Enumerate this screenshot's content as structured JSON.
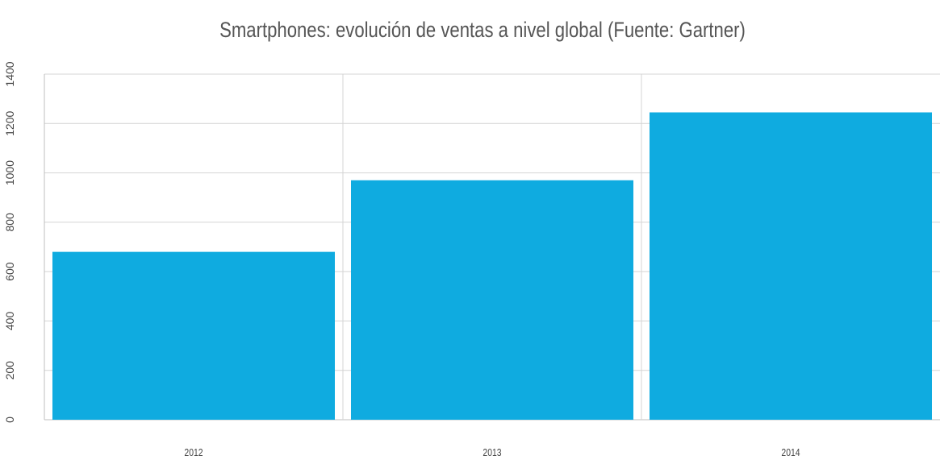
{
  "chart_data": {
    "type": "bar",
    "title": "Smartphones: evolución de ventas a nivel global (Fuente: Gartner)",
    "ylabel": "",
    "xlabel": "",
    "categories": [
      "2012",
      "2013",
      "2014"
    ],
    "series": [
      {
        "values": [
          680,
          970,
          1245
        ],
        "color": "#0fabe0"
      }
    ],
    "ylim": [
      0,
      1400
    ],
    "yticks": [
      "0",
      "200",
      "400",
      "600",
      "800",
      "1000",
      "1200",
      "1400"
    ],
    "grid": true,
    "legend": "none"
  }
}
